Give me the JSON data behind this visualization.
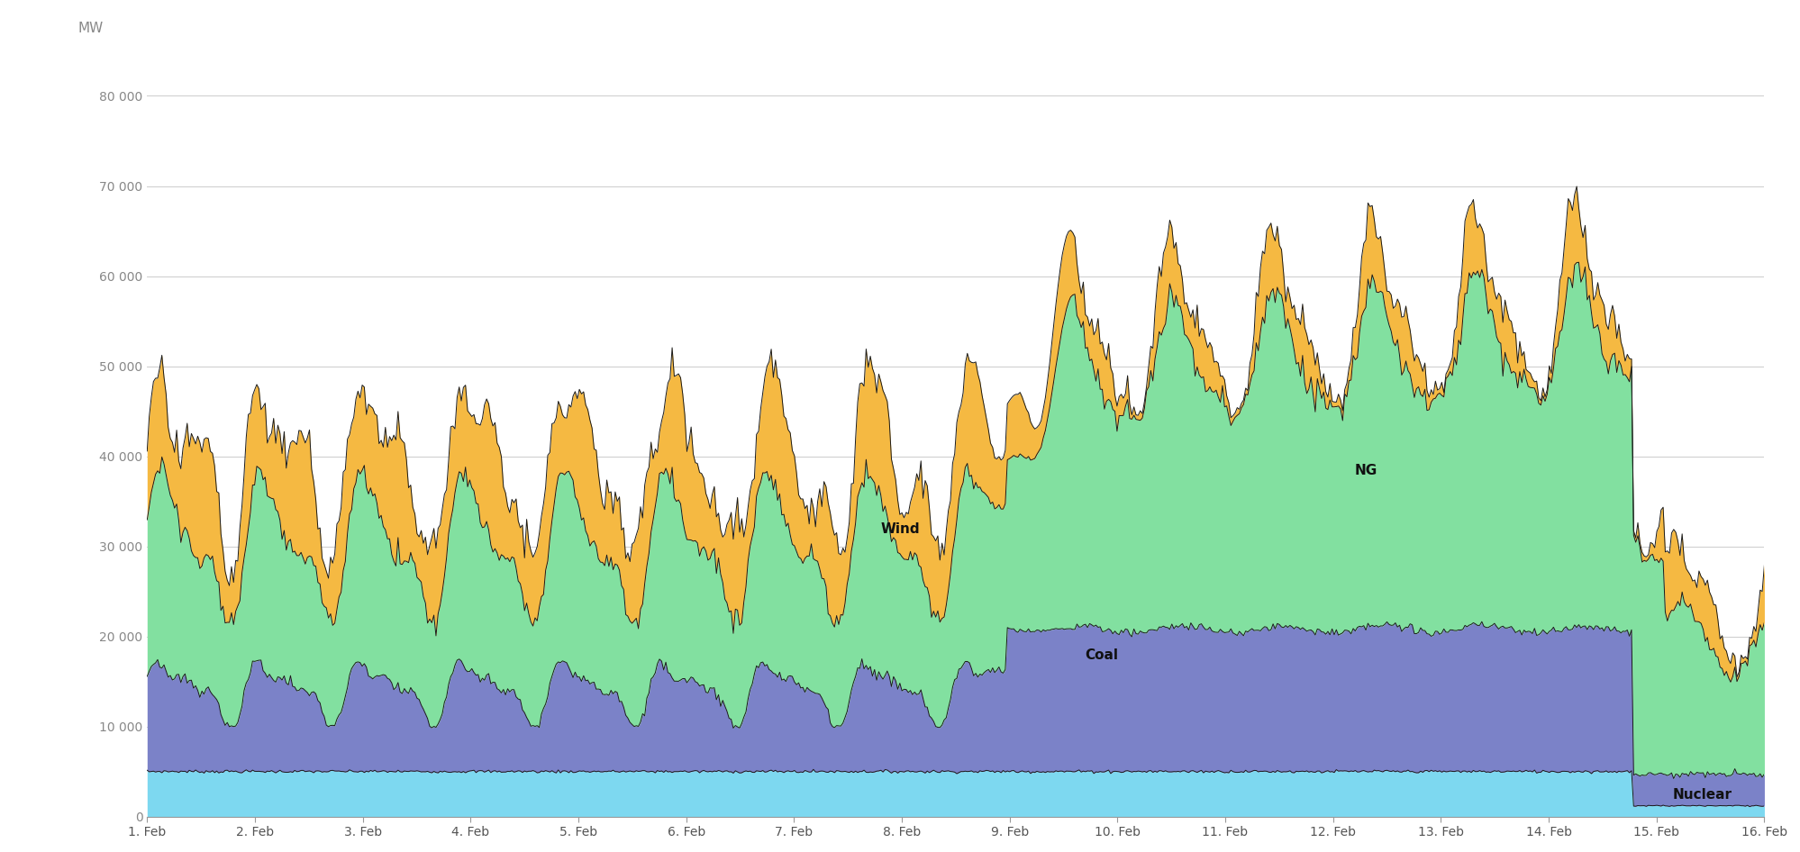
{
  "ylabel": "MW",
  "x_labels": [
    "1. Feb",
    "2. Feb",
    "3. Feb",
    "4. Feb",
    "5. Feb",
    "6. Feb",
    "7. Feb",
    "8. Feb",
    "9. Feb",
    "10. Feb",
    "11. Feb",
    "12. Feb",
    "13. Feb",
    "14. Feb",
    "15. Feb",
    "16. Feb"
  ],
  "ylim": [
    0,
    85000
  ],
  "yticks": [
    0,
    10000,
    20000,
    30000,
    40000,
    50000,
    60000,
    70000,
    80000
  ],
  "ytick_labels": [
    "0",
    "10 000",
    "20 000",
    "30 000",
    "40 000",
    "50 000",
    "60 000",
    "70 000",
    "80 000"
  ],
  "colors": {
    "nuclear": "#7DD8F0",
    "coal": "#7B82C8",
    "ng": "#82E0A0",
    "wind": "#F5B942"
  },
  "edge_color": "#1a1a1a",
  "background_color": "#FFFFFF",
  "grid_color": "#CCCCCC",
  "label_wind": "Wind",
  "label_ng": "NG",
  "label_coal": "Coal",
  "label_nuclear": "Nuclear",
  "annotation_fontsize": 11,
  "ylabel_fontsize": 11,
  "n_days": 16,
  "pts_per_day": 48
}
